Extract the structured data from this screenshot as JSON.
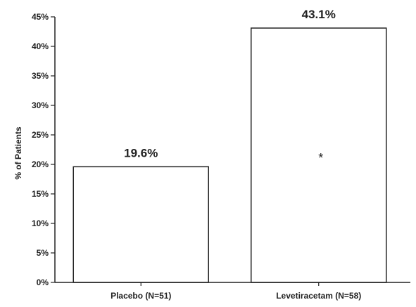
{
  "chart_data": {
    "type": "bar",
    "categories": [
      "Placebo (N=51)",
      "Levetiracetam (N=58)"
    ],
    "values": [
      19.6,
      43.1
    ],
    "data_labels": [
      "19.6%",
      "43.1%"
    ],
    "title": "",
    "xlabel": "",
    "ylabel": "% of Patients",
    "ylim": [
      0,
      45
    ],
    "yticks": [
      "0%",
      "5%",
      "10%",
      "15%",
      "20%",
      "25%",
      "30%",
      "35%",
      "40%",
      "45%"
    ],
    "ytick_values": [
      0,
      5,
      10,
      15,
      20,
      25,
      30,
      35,
      40,
      45
    ],
    "grid": false,
    "bar_fill": "#ffffff",
    "bar_stroke": "#222222",
    "annotations": [
      {
        "category": "Levetiracetam (N=58)",
        "text": "*"
      }
    ]
  }
}
